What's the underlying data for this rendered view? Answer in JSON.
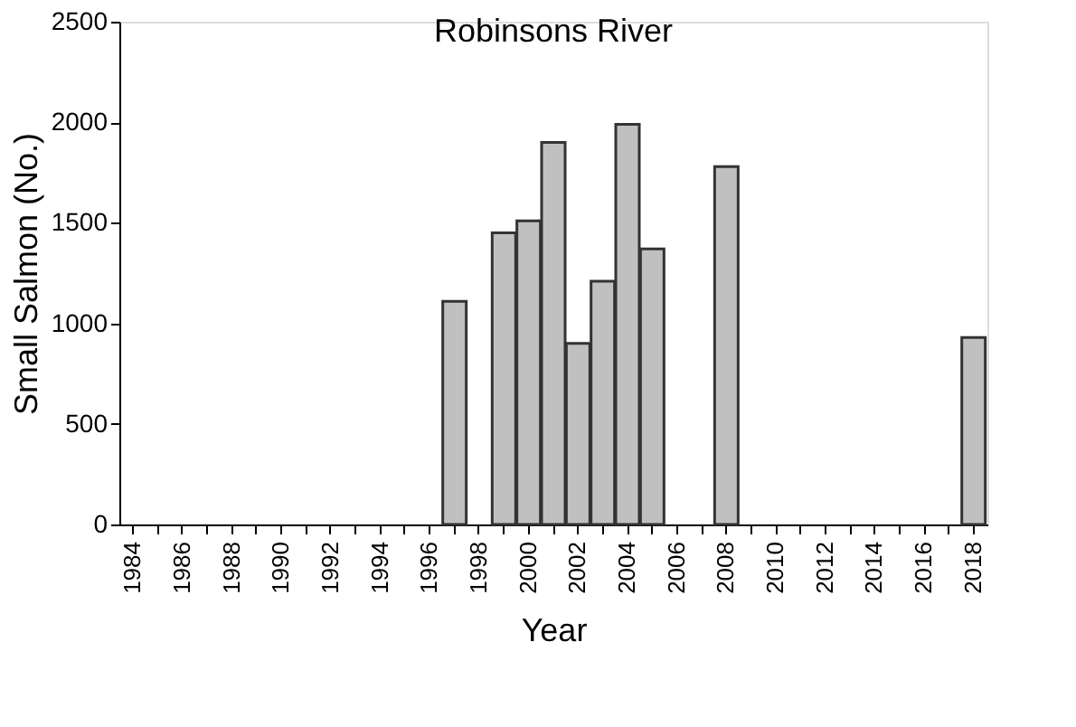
{
  "chart_data": {
    "type": "bar",
    "title": "Robinsons River",
    "xlabel": "Year",
    "ylabel": "Small Salmon (No.)",
    "categories": [
      "1984",
      null,
      "1986",
      null,
      "1988",
      null,
      "1990",
      null,
      "1992",
      null,
      "1994",
      null,
      "1996",
      null,
      "1998",
      null,
      "2000",
      null,
      "2002",
      null,
      "2004",
      null,
      "2006",
      null,
      "2008",
      null,
      "2010",
      null,
      "2012",
      null,
      "2014",
      null,
      "2016",
      null,
      "2018"
    ],
    "values": [
      null,
      null,
      null,
      null,
      null,
      null,
      null,
      null,
      null,
      null,
      null,
      null,
      null,
      1110,
      null,
      1450,
      1510,
      1900,
      900,
      1210,
      1990,
      1370,
      null,
      null,
      1780,
      null,
      null,
      null,
      null,
      null,
      null,
      null,
      null,
      null,
      930
    ],
    "color": "#c0c0c0",
    "ylim": [
      0,
      2500
    ],
    "yticks": [
      0,
      500,
      1000,
      1500,
      2000,
      2500
    ],
    "grid": false
  }
}
